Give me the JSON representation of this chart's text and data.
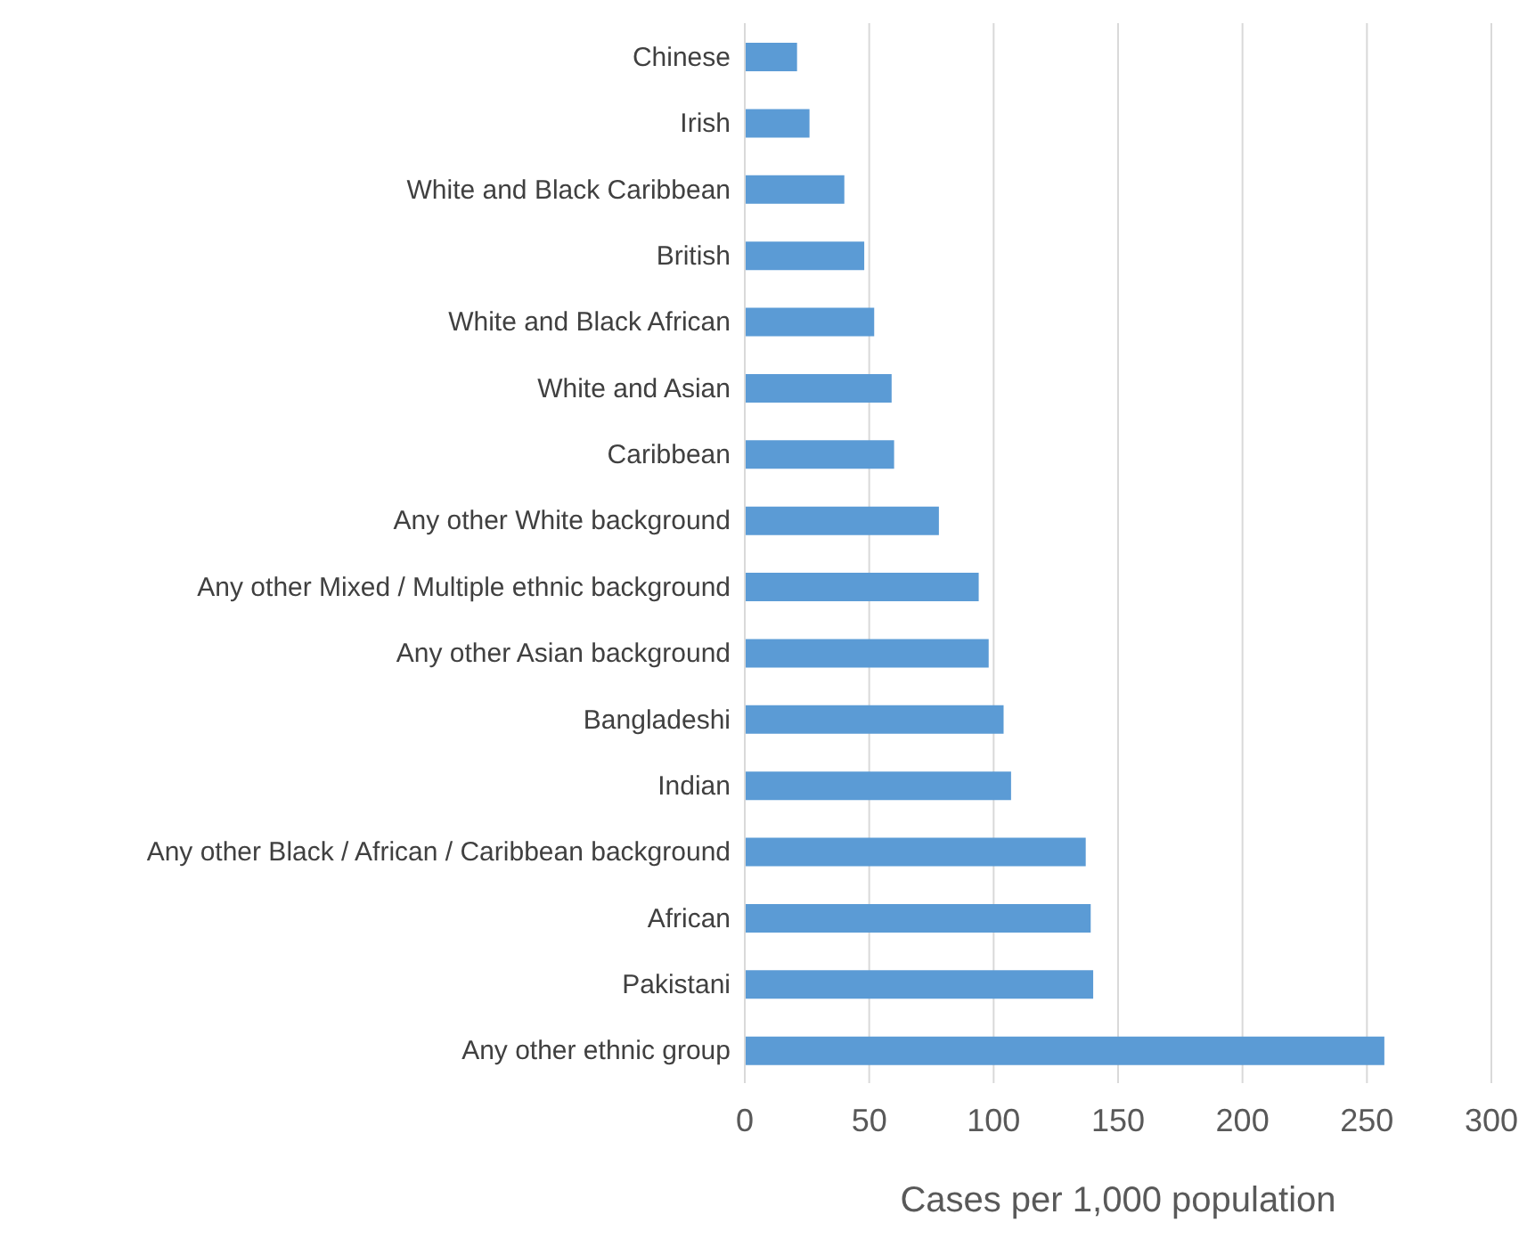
{
  "chart_data": {
    "type": "bar",
    "orientation": "horizontal",
    "xlabel": "Cases per 1,000 population",
    "categories": [
      "Chinese",
      "Irish",
      "White and Black Caribbean",
      "British",
      "White and Black African",
      "White and Asian",
      "Caribbean",
      "Any other White background",
      "Any other Mixed / Multiple ethnic background",
      "Any other Asian background",
      "Bangladeshi",
      "Indian",
      "Any other Black / African / Caribbean background",
      "African",
      "Pakistani",
      "Any other ethnic group"
    ],
    "values": [
      21,
      26,
      40,
      48,
      52,
      59,
      60,
      78,
      94,
      98,
      104,
      107,
      137,
      139,
      140,
      257
    ],
    "color": "#5b9bd5",
    "xlim": [
      0,
      300
    ],
    "xticks": [
      0,
      50,
      100,
      150,
      200,
      250,
      300
    ],
    "grid": "x",
    "legend": false
  }
}
